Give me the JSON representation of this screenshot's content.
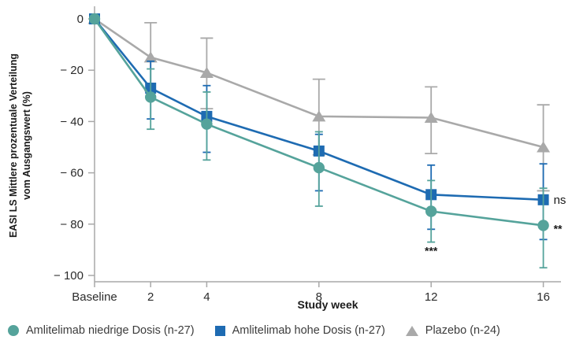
{
  "chart_data": {
    "type": "line",
    "title": "",
    "xlabel": "Study week",
    "ylabel": "EASI LS Mittlere prozentuale Verteilung vom Ausgangswert (%)",
    "ylabel_lines": [
      "EASI LS Mittlere prozentuale Verteilung",
      "vom Ausgangswert (%)"
    ],
    "x_categories": [
      "Baseline",
      "2",
      "4",
      "8",
      "12",
      "16"
    ],
    "x_weeks": [
      0,
      2,
      4,
      8,
      12,
      16
    ],
    "ylim": [
      -100,
      0
    ],
    "y_ticks": [
      0,
      -20,
      -40,
      -60,
      -80,
      -100
    ],
    "y_tick_labels": [
      "0",
      "− 20",
      "− 40",
      "− 60",
      "− 80",
      "− 100"
    ],
    "grid": false,
    "legend_position": "bottom",
    "axis_color": "#a8a8a8",
    "text_color": "#1a1a1a",
    "series": [
      {
        "name": "Plazebo (n-24)",
        "marker": "triangle",
        "color": "#a9a9a9",
        "values": [
          0,
          -15,
          -21,
          -38,
          -38.5,
          -50
        ],
        "err_high": [
          0,
          -1.5,
          -7.5,
          -23.5,
          -26.5,
          -33.5
        ],
        "err_low": [
          0,
          -28,
          -35,
          -53,
          -52.5,
          -67
        ]
      },
      {
        "name": "Amlitelimab hohe Dosis (n-27)",
        "marker": "square",
        "color": "#1e6bb2",
        "values": [
          0,
          -27,
          -38,
          -51.5,
          -68.5,
          -70.5
        ],
        "err_high": [
          0,
          -16.5,
          -26,
          -45,
          -57,
          -56.5
        ],
        "err_low": [
          0,
          -39,
          -52,
          -67,
          -82,
          -86
        ]
      },
      {
        "name": "Amlitelimab niedrige Dosis (n-27)",
        "marker": "circle",
        "color": "#55a39b",
        "values": [
          0,
          -30.5,
          -41,
          -58,
          -75,
          -80.5
        ],
        "err_high": [
          0,
          -19.5,
          -28.5,
          -44,
          -63,
          -66
        ],
        "err_low": [
          0,
          -43,
          -55,
          -73,
          -87,
          -97
        ]
      }
    ],
    "annotations": [
      {
        "text": "***",
        "series_index": 2,
        "point_index": 4,
        "placement": "below-errorbar"
      },
      {
        "text": "**",
        "series_index": 2,
        "point_index": 5,
        "placement": "right"
      },
      {
        "text": "ns",
        "series_index": 1,
        "point_index": 5,
        "placement": "right"
      }
    ],
    "legend": [
      {
        "series_index": 2,
        "label": "Amlitelimab niedrige Dosis (n-27)"
      },
      {
        "series_index": 1,
        "label": "Amlitelimab hohe Dosis (n-27)"
      },
      {
        "series_index": 0,
        "label": "Plazebo (n-24)"
      }
    ]
  }
}
